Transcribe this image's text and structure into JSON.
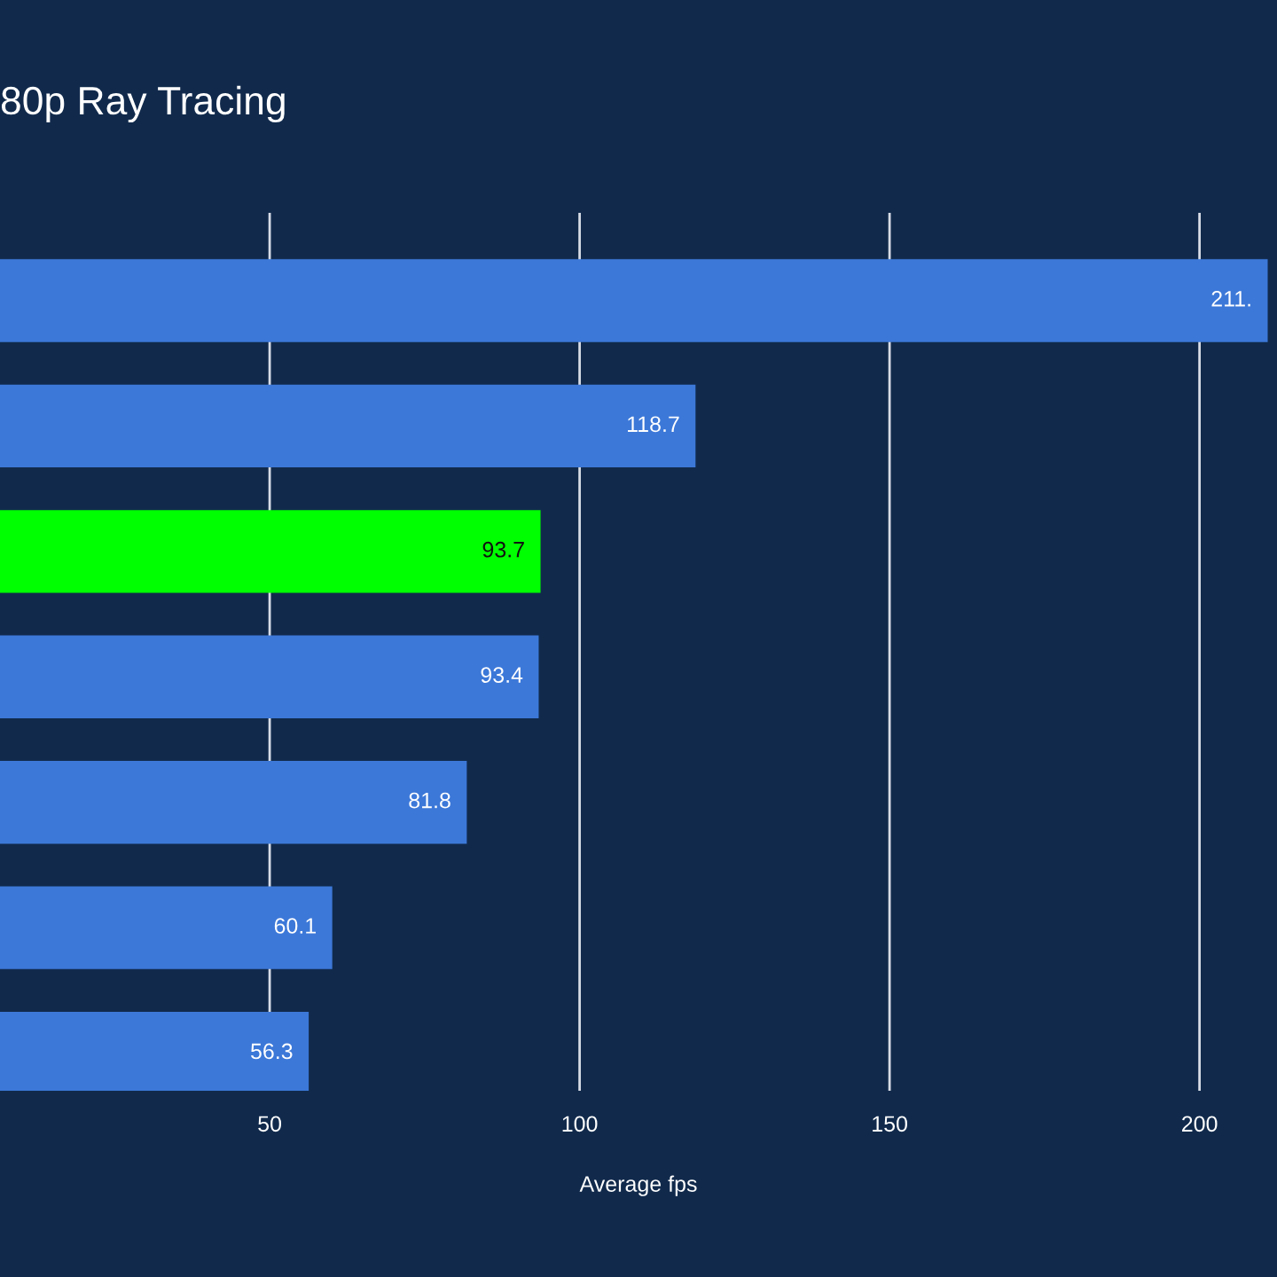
{
  "chart_data": {
    "type": "bar",
    "orientation": "horizontal",
    "title": "80p Ray Tracing",
    "xlabel": "Average fps",
    "categories": [
      null,
      null,
      null,
      null,
      null,
      null,
      null
    ],
    "values": [
      211,
      118.7,
      93.7,
      93.4,
      81.8,
      60.1,
      56.3
    ],
    "value_labels": [
      "211.",
      "118.7",
      "93.7",
      "93.4",
      "81.8",
      "60.1",
      "56.3"
    ],
    "colors": [
      "#3c78d8",
      "#3c78d8",
      "#00ff00",
      "#3c78d8",
      "#3c78d8",
      "#3c78d8",
      "#3c78d8"
    ],
    "xlim": [
      6.5,
      212.5
    ],
    "xticks": [
      50,
      100,
      150,
      200
    ],
    "grid": "x"
  }
}
